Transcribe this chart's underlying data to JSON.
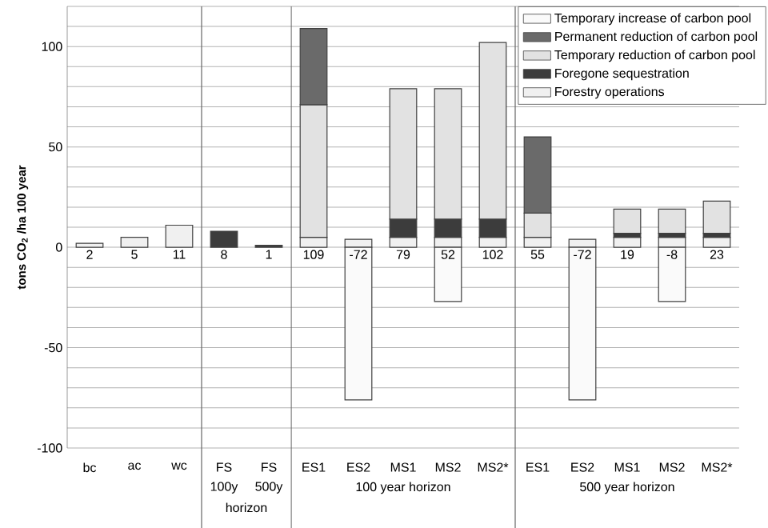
{
  "chart_data": {
    "type": "bar",
    "stacked": true,
    "ylabel": "tons CO$_{2}$ /ha 100 year",
    "categories": [
      "bc",
      "ac",
      "wc",
      "FS",
      "FS",
      "ES1",
      "ES2",
      "MS1",
      "MS2",
      "MS2*",
      "ES1",
      "ES2",
      "MS1",
      "MS2",
      "MS2*"
    ],
    "series": [
      {
        "name": "Forestry operations",
        "color": "#f0f0f0",
        "values": [
          2,
          5,
          11,
          null,
          null,
          5,
          4,
          5,
          5,
          5,
          5,
          4,
          5,
          5,
          5
        ]
      },
      {
        "name": "Foregone sequestration",
        "color": "#3c3c3c",
        "values": [
          null,
          null,
          null,
          8,
          1,
          null,
          null,
          9,
          9,
          9,
          null,
          null,
          2,
          2,
          2
        ]
      },
      {
        "name": "Temporary reduction of carbon pool",
        "color": "#e2e2e2",
        "values": [
          null,
          null,
          null,
          null,
          null,
          66,
          null,
          65,
          65,
          88,
          12,
          null,
          12,
          12,
          16
        ]
      },
      {
        "name": "Permanent reduction of carbon pool",
        "color": "#6a6a6a",
        "values": [
          null,
          null,
          null,
          null,
          null,
          38,
          null,
          null,
          null,
          null,
          38,
          null,
          null,
          null,
          null
        ]
      },
      {
        "name": "Temporary increase of carbon pool",
        "color": "#fafafa",
        "values": [
          null,
          null,
          null,
          null,
          null,
          null,
          -76,
          null,
          -27,
          null,
          null,
          -76,
          null,
          -27,
          null
        ]
      }
    ],
    "totals": [
      "2",
      "5",
      "11",
      "8",
      "1",
      "109",
      "-72",
      "79",
      "52",
      "102",
      "55",
      "-72",
      "19",
      "-8",
      "23"
    ],
    "ylim": [
      -100,
      120
    ],
    "yticks": [
      -100,
      {
        "value": -90,
        "label": null
      },
      {
        "value": -80,
        "label": null
      },
      {
        "value": -70,
        "label": null
      },
      {
        "value": -60,
        "label": null
      },
      -50,
      {
        "value": -40,
        "label": null
      },
      {
        "value": -30,
        "label": null
      },
      {
        "value": -20,
        "label": null
      },
      {
        "value": -10,
        "label": null
      },
      0,
      {
        "value": 10,
        "label": null
      },
      {
        "value": 20,
        "label": null
      },
      {
        "value": 30,
        "label": null
      },
      {
        "value": 40,
        "label": null
      },
      50,
      {
        "value": 60,
        "label": null
      },
      {
        "value": 70,
        "label": null
      },
      {
        "value": 80,
        "label": null
      },
      {
        "value": 90,
        "label": null
      },
      100,
      {
        "value": 110,
        "label": null
      },
      {
        "value": 120,
        "label": null
      }
    ],
    "grid": "y",
    "legend": "top right",
    "annotations": [
      "100y",
      "500y",
      "horizon",
      "100 year horizon",
      "500 year horizon"
    ]
  }
}
